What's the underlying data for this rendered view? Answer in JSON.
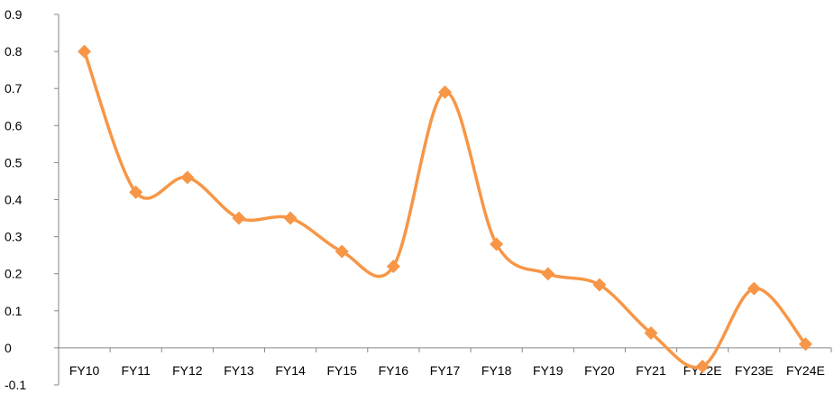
{
  "chart_data": {
    "type": "line",
    "title": "",
    "xlabel": "",
    "ylabel": "",
    "categories": [
      "FY10",
      "FY11",
      "FY12",
      "FY13",
      "FY14",
      "FY15",
      "FY16",
      "FY17",
      "FY18",
      "FY19",
      "FY20",
      "FY21",
      "FY22E",
      "FY23E",
      "FY24E"
    ],
    "series": [
      {
        "values": [
          0.8,
          0.42,
          0.46,
          0.35,
          0.35,
          0.26,
          0.22,
          0.69,
          0.28,
          0.2,
          0.17,
          0.04,
          -0.05,
          0.16,
          0.01
        ],
        "color": "#f79646",
        "marker": "diamond",
        "smooth": true
      }
    ],
    "ylim": [
      -0.1,
      0.9
    ],
    "yticks": [
      "-0.1",
      "0",
      "0.1",
      "0.2",
      "0.3",
      "0.4",
      "0.5",
      "0.6",
      "0.7",
      "0.8",
      "0.9"
    ],
    "grid": false,
    "legend": "none"
  }
}
